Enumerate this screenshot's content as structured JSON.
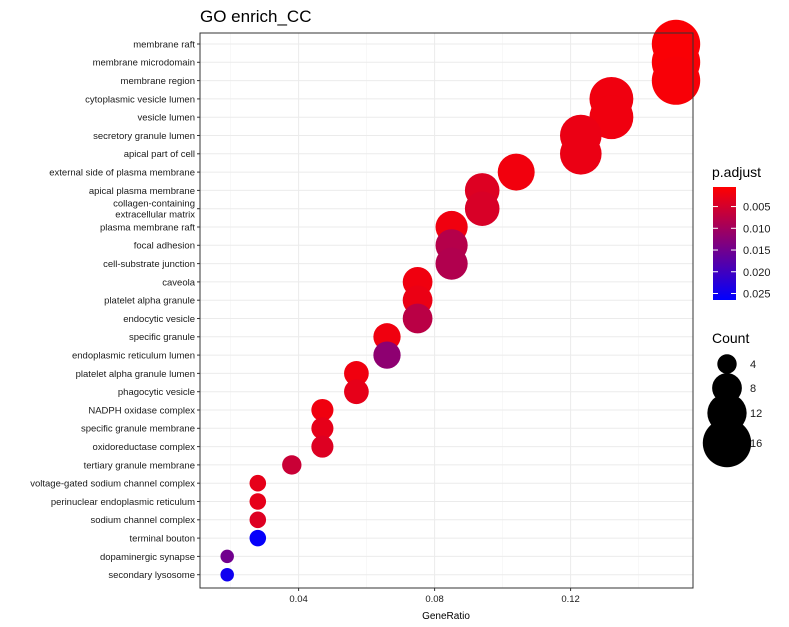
{
  "chart_data": {
    "type": "scatter",
    "title": "GO enrich_CC",
    "xlabel": "GeneRatio",
    "ylabel": "",
    "xlim": [
      0.011,
      0.156
    ],
    "xticks": [
      0.04,
      0.08,
      0.12
    ],
    "xtick_labels": [
      "0.04",
      "0.08",
      "0.12"
    ],
    "grid": true,
    "legend_position": "right",
    "color_legend": {
      "title": "p.adjust",
      "ticks": [
        0.005,
        0.01,
        0.015,
        0.02,
        0.025
      ],
      "tick_labels": [
        "0.005",
        "0.010",
        "0.015",
        "0.020",
        "0.025"
      ],
      "range": [
        0.0005,
        0.0265
      ],
      "low_color": "#ff0000",
      "high_color": "#0000ff"
    },
    "size_legend": {
      "title": "Count",
      "values": [
        4,
        8,
        12,
        16
      ],
      "labels": [
        "4",
        "8",
        "12",
        "16"
      ]
    },
    "points": [
      {
        "term": "membrane raft",
        "gene_ratio": 0.151,
        "count": 16,
        "p_adjust": 0.001
      },
      {
        "term": "membrane microdomain",
        "gene_ratio": 0.151,
        "count": 16,
        "p_adjust": 0.001
      },
      {
        "term": "membrane region",
        "gene_ratio": 0.151,
        "count": 16,
        "p_adjust": 0.0012
      },
      {
        "term": "cytoplasmic vesicle lumen",
        "gene_ratio": 0.132,
        "count": 14,
        "p_adjust": 0.002
      },
      {
        "term": "vesicle lumen",
        "gene_ratio": 0.132,
        "count": 14,
        "p_adjust": 0.002
      },
      {
        "term": "secretory granule lumen",
        "gene_ratio": 0.123,
        "count": 13,
        "p_adjust": 0.0025
      },
      {
        "term": "apical part of cell",
        "gene_ratio": 0.123,
        "count": 13,
        "p_adjust": 0.0025
      },
      {
        "term": "external side of plasma membrane",
        "gene_ratio": 0.104,
        "count": 11,
        "p_adjust": 0.0018
      },
      {
        "term": "apical plasma membrane",
        "gene_ratio": 0.094,
        "count": 10,
        "p_adjust": 0.004
      },
      {
        "term": "collagen-containing\nextracellular matrix",
        "gene_ratio": 0.094,
        "count": 10,
        "p_adjust": 0.0045
      },
      {
        "term": "plasma membrane raft",
        "gene_ratio": 0.085,
        "count": 9,
        "p_adjust": 0.002
      },
      {
        "term": "focal adhesion",
        "gene_ratio": 0.085,
        "count": 9,
        "p_adjust": 0.008
      },
      {
        "term": "cell-substrate junction",
        "gene_ratio": 0.085,
        "count": 9,
        "p_adjust": 0.0085
      },
      {
        "term": "caveola",
        "gene_ratio": 0.075,
        "count": 8,
        "p_adjust": 0.002
      },
      {
        "term": "platelet alpha granule",
        "gene_ratio": 0.075,
        "count": 8,
        "p_adjust": 0.0025
      },
      {
        "term": "endocytic vesicle",
        "gene_ratio": 0.075,
        "count": 8,
        "p_adjust": 0.0075
      },
      {
        "term": "specific granule",
        "gene_ratio": 0.066,
        "count": 7,
        "p_adjust": 0.002
      },
      {
        "term": "endoplasmic reticulum lumen",
        "gene_ratio": 0.066,
        "count": 7,
        "p_adjust": 0.012
      },
      {
        "term": "platelet alpha granule lumen",
        "gene_ratio": 0.057,
        "count": 6,
        "p_adjust": 0.002
      },
      {
        "term": "phagocytic vesicle",
        "gene_ratio": 0.057,
        "count": 6,
        "p_adjust": 0.003
      },
      {
        "term": "NADPH oxidase complex",
        "gene_ratio": 0.047,
        "count": 5,
        "p_adjust": 0.002
      },
      {
        "term": "specific granule membrane",
        "gene_ratio": 0.047,
        "count": 5,
        "p_adjust": 0.003
      },
      {
        "term": "oxidoreductase complex",
        "gene_ratio": 0.047,
        "count": 5,
        "p_adjust": 0.004
      },
      {
        "term": "tertiary granule membrane",
        "gene_ratio": 0.038,
        "count": 4,
        "p_adjust": 0.006
      },
      {
        "term": "voltage-gated sodium channel complex",
        "gene_ratio": 0.028,
        "count": 3,
        "p_adjust": 0.003
      },
      {
        "term": "perinuclear endoplasmic reticulum",
        "gene_ratio": 0.028,
        "count": 3,
        "p_adjust": 0.003
      },
      {
        "term": "sodium channel complex",
        "gene_ratio": 0.028,
        "count": 3,
        "p_adjust": 0.004
      },
      {
        "term": "terminal bouton",
        "gene_ratio": 0.028,
        "count": 3,
        "p_adjust": 0.026
      },
      {
        "term": "dopaminergic synapse",
        "gene_ratio": 0.019,
        "count": 2,
        "p_adjust": 0.015
      },
      {
        "term": "secondary lysosome",
        "gene_ratio": 0.019,
        "count": 2,
        "p_adjust": 0.025
      }
    ]
  }
}
